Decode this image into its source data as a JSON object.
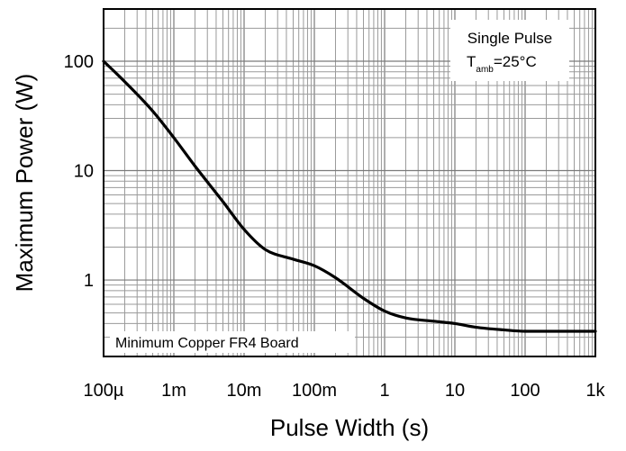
{
  "chart_data": {
    "type": "line",
    "xlabel": "Pulse Width (s)",
    "ylabel": "Maximum Power (W)",
    "x_scale": "log",
    "y_scale": "log",
    "xlim": [
      0.0001,
      1000
    ],
    "ylim": [
      0.2,
      300
    ],
    "x_ticks": [
      {
        "value": 0.0001,
        "label": "100µ"
      },
      {
        "value": 0.001,
        "label": "1m"
      },
      {
        "value": 0.01,
        "label": "10m"
      },
      {
        "value": 0.1,
        "label": "100m"
      },
      {
        "value": 1,
        "label": "1"
      },
      {
        "value": 10,
        "label": "10"
      },
      {
        "value": 100,
        "label": "100"
      },
      {
        "value": 1000,
        "label": "1k"
      }
    ],
    "y_ticks": [
      {
        "value": 1,
        "label": "1"
      },
      {
        "value": 10,
        "label": "10"
      },
      {
        "value": 100,
        "label": "100"
      }
    ],
    "grid": true,
    "annotations": {
      "top_right": {
        "line1": "Single Pulse",
        "t_main": "T",
        "t_sub": "amb",
        "t_rest": "=25°C"
      },
      "bottom_left": "Minimum Copper FR4 Board"
    },
    "series": [
      {
        "color": "#000000",
        "x": [
          0.0001,
          0.0002,
          0.0005,
          0.001,
          0.002,
          0.005,
          0.01,
          0.02,
          0.05,
          0.1,
          0.2,
          0.5,
          1,
          2,
          5,
          10,
          20,
          50,
          100,
          200,
          500,
          1000
        ],
        "y": [
          100,
          65,
          35,
          20,
          11,
          5.2,
          2.9,
          1.9,
          1.55,
          1.35,
          1.05,
          0.68,
          0.52,
          0.45,
          0.42,
          0.4,
          0.37,
          0.35,
          0.34,
          0.34,
          0.34,
          0.34
        ]
      }
    ]
  }
}
